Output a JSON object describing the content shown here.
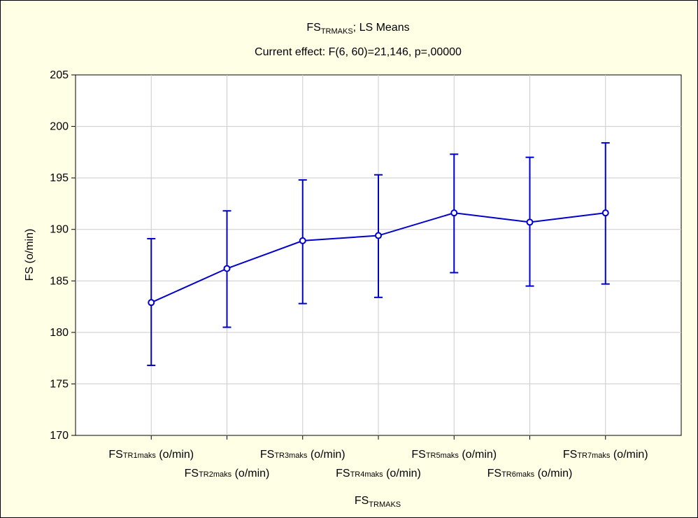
{
  "colors": {
    "background": "#ffffe6",
    "plot_background": "#ffffff",
    "series": "#0000cc",
    "grid": "#cccccc"
  },
  "chart_data": {
    "type": "line",
    "title_main": "FS",
    "title_sub": "TRMAKS",
    "title_suffix": "; LS Means",
    "subtitle": "Current effect: F(6, 60)=21,146, p=,00000",
    "xlabel_main": "FS",
    "xlabel_sub": "TRMAKS",
    "ylabel": "FS (o/min)",
    "ylim": [
      170,
      205
    ],
    "yticks": [
      "170",
      "175",
      "180",
      "185",
      "190",
      "195",
      "200",
      "205"
    ],
    "categories": [
      {
        "main": "FS",
        "sub": "TR1maks",
        "suffix": " (o/min)"
      },
      {
        "main": "FS",
        "sub": "TR2maks",
        "suffix": " (o/min)"
      },
      {
        "main": "FS",
        "sub": "TR3maks",
        "suffix": " (o/min)"
      },
      {
        "main": "FS",
        "sub": "TR4maks",
        "suffix": " (o/min)"
      },
      {
        "main": "FS",
        "sub": "TR5maks",
        "suffix": " (o/min)"
      },
      {
        "main": "FS",
        "sub": "TR6maks",
        "suffix": " (o/min)"
      },
      {
        "main": "FS",
        "sub": "TR7maks",
        "suffix": " (o/min)"
      }
    ],
    "means": [
      182.9,
      186.2,
      188.9,
      189.4,
      191.6,
      190.7,
      191.6
    ],
    "ci_low": [
      176.8,
      180.5,
      182.8,
      183.4,
      185.8,
      184.5,
      184.7
    ],
    "ci_high": [
      189.1,
      191.8,
      194.8,
      195.3,
      197.3,
      197.0,
      198.4
    ],
    "grid": true
  }
}
